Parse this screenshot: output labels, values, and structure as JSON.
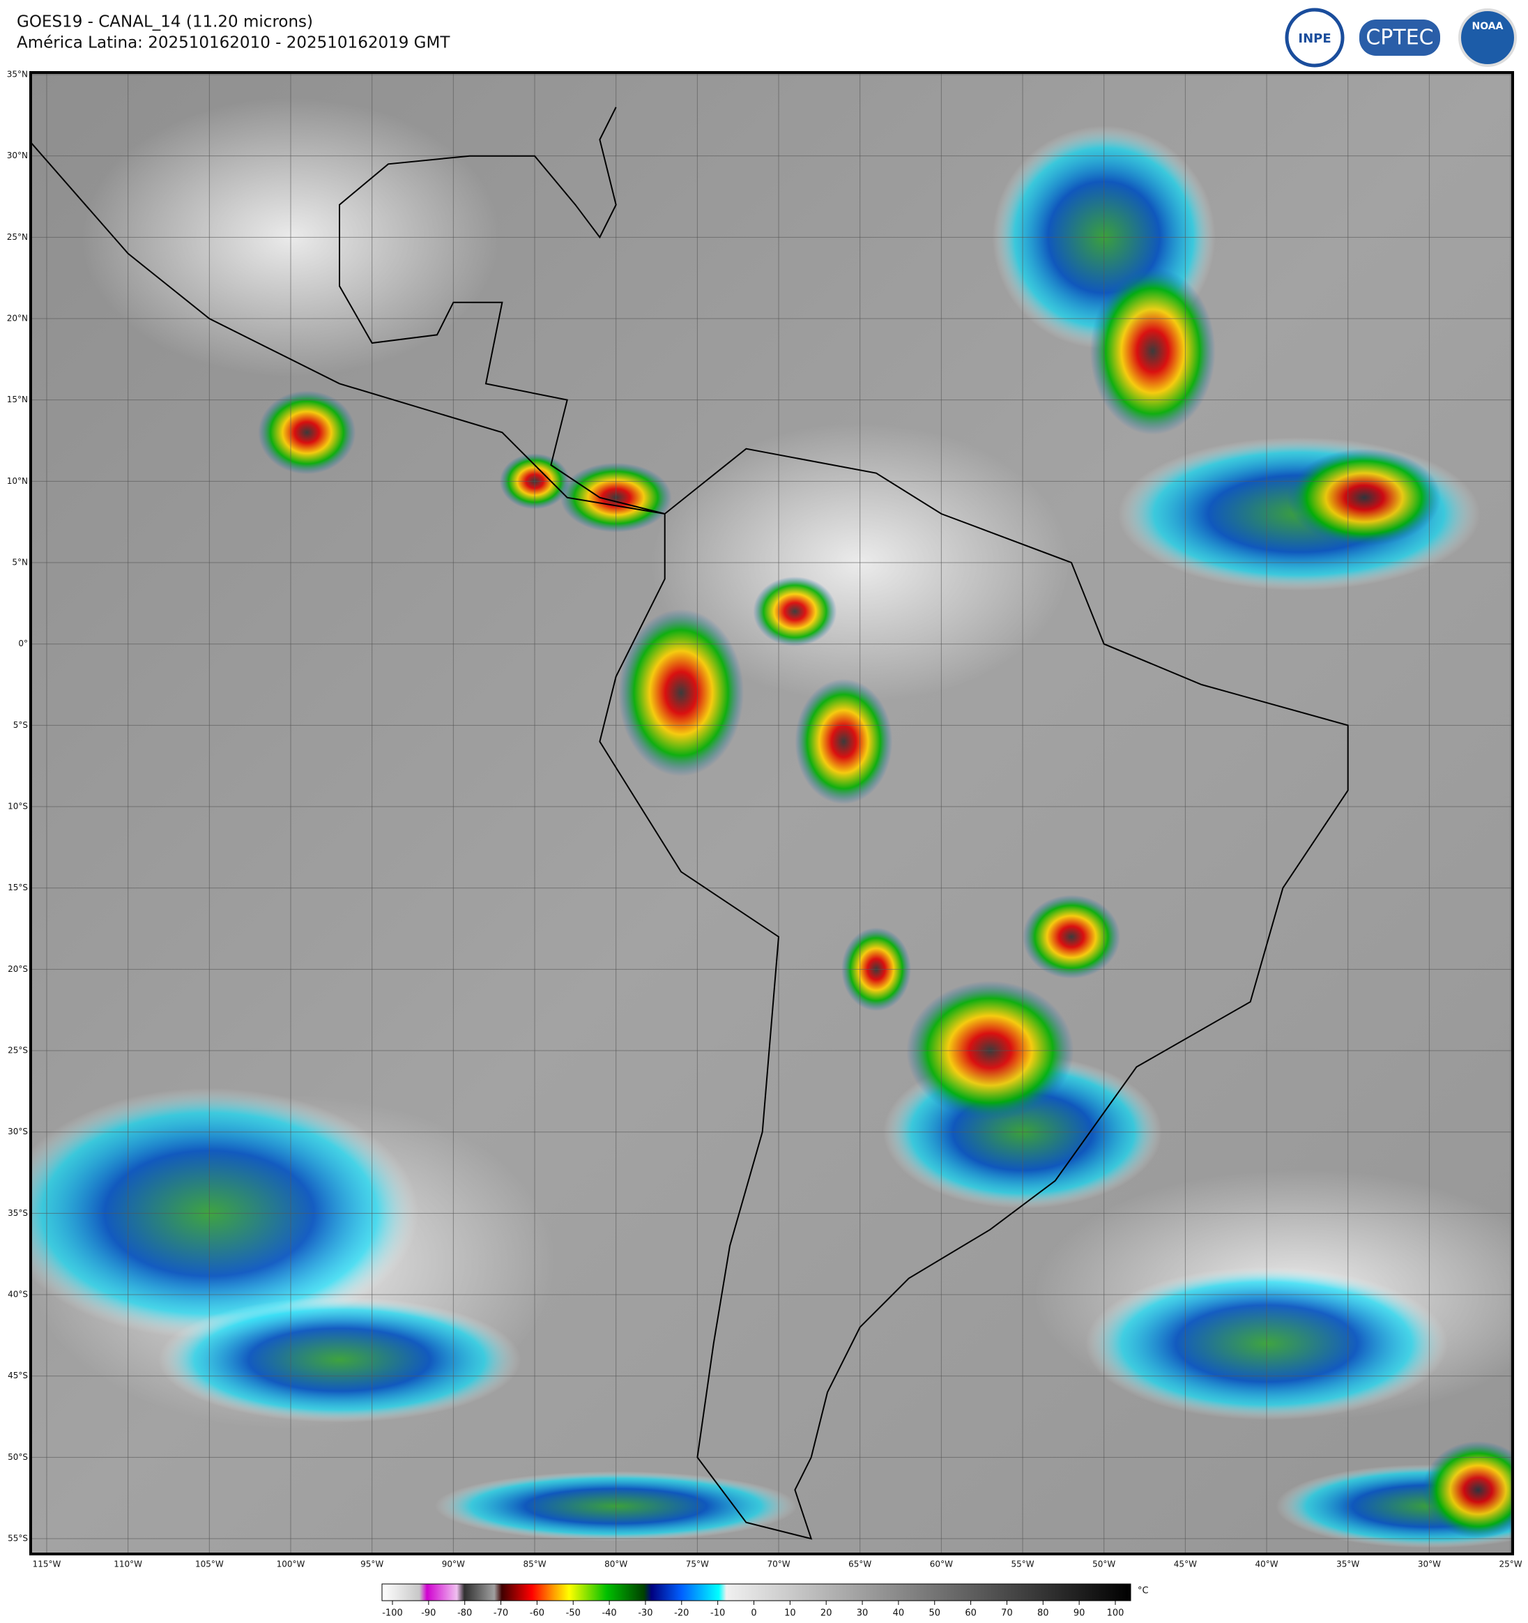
{
  "header": {
    "title": "GOES19 - CANAL_14 (11.20 microns)",
    "subtitle": "América Latina: 202510162010 - 202510162019 GMT"
  },
  "logos": [
    "INPE",
    "CPTEC",
    "NOAA"
  ],
  "map": {
    "lat_labels": [
      "35°N",
      "30°N",
      "25°N",
      "20°N",
      "15°N",
      "10°N",
      "5°N",
      "0°",
      "5°S",
      "10°S",
      "15°S",
      "20°S",
      "25°S",
      "30°S",
      "35°S",
      "40°S",
      "45°S",
      "50°S",
      "55°S"
    ],
    "lon_labels": [
      "115°W",
      "110°W",
      "105°W",
      "100°W",
      "95°W",
      "90°W",
      "85°W",
      "80°W",
      "75°W",
      "70°W",
      "65°W",
      "60°W",
      "55°W",
      "50°W",
      "45°W",
      "40°W",
      "35°W",
      "30°W",
      "25°W"
    ]
  },
  "colorbar": {
    "ticks": [
      -100,
      -90,
      -80,
      -70,
      -60,
      -50,
      -40,
      -30,
      -20,
      -10,
      0,
      10,
      20,
      30,
      40,
      50,
      60,
      70,
      80,
      90,
      100
    ],
    "unit": "°C"
  }
}
